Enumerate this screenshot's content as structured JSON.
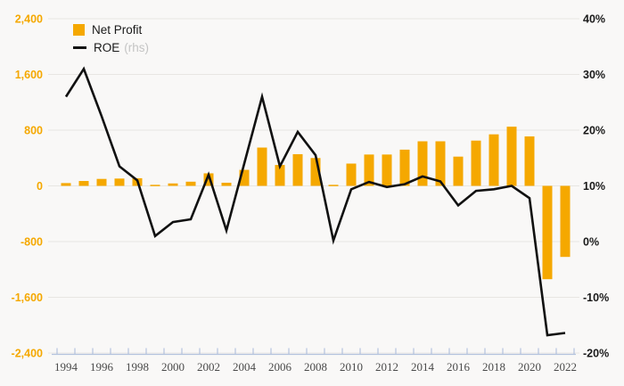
{
  "page": {
    "background": "#f9f8f7"
  },
  "chart_data": {
    "type": "bar+line combo",
    "title": "",
    "x": [
      1994,
      1995,
      1996,
      1997,
      1998,
      1999,
      2000,
      2001,
      2002,
      2003,
      2004,
      2005,
      2006,
      2007,
      2008,
      2009,
      2010,
      2011,
      2012,
      2013,
      2014,
      2015,
      2016,
      2017,
      2018,
      2019,
      2020,
      2021,
      2022
    ],
    "series": [
      {
        "name": "Net Profit",
        "type": "bar",
        "axis": "left",
        "color": "#F5A800",
        "values": [
          40,
          70,
          100,
          105,
          110,
          15,
          35,
          60,
          180,
          45,
          230,
          550,
          300,
          455,
          400,
          15,
          320,
          450,
          450,
          520,
          640,
          640,
          420,
          650,
          740,
          850,
          710,
          -1340,
          -1020
        ]
      },
      {
        "name": "ROE",
        "type": "line",
        "axis": "right",
        "color": "#111111",
        "values": [
          26,
          31,
          22.5,
          13.5,
          11,
          1,
          3.5,
          4,
          12,
          2,
          14,
          26,
          13.5,
          19.7,
          15.5,
          0.2,
          9.4,
          10.7,
          9.8,
          10.3,
          11.7,
          10.8,
          6.5,
          9.1,
          9.4,
          10,
          7.8,
          -16.8,
          -16.4
        ]
      }
    ],
    "left_axis": {
      "min": -2400,
      "max": 2400,
      "tick_step": 800,
      "tick_labels": [
        "2,400",
        "1,600",
        "800",
        "0",
        "-800",
        "-1,600",
        "-2,400"
      ],
      "color": "#F5A800"
    },
    "right_axis": {
      "min": -20,
      "max": 40,
      "tick_step": 10,
      "tick_labels": [
        "40%",
        "30%",
        "20%",
        "10%",
        "0%",
        "-10%",
        "-20%"
      ],
      "color": "#1a1a1a"
    },
    "x_axis": {
      "labeled_years": [
        1994,
        1996,
        1998,
        2000,
        2002,
        2004,
        2006,
        2008,
        2010,
        2012,
        2014,
        2016,
        2018,
        2020,
        2022
      ],
      "line_color": "#b4c3de",
      "label_color": "#4a4a4a"
    },
    "grid": true,
    "grid_color": "#e8e6e3",
    "legend_position": "top-left",
    "legend": [
      {
        "swatch": "square",
        "label": "Net Profit",
        "suffix": ""
      },
      {
        "swatch": "line",
        "label": "ROE",
        "suffix": "(rhs)"
      }
    ]
  }
}
